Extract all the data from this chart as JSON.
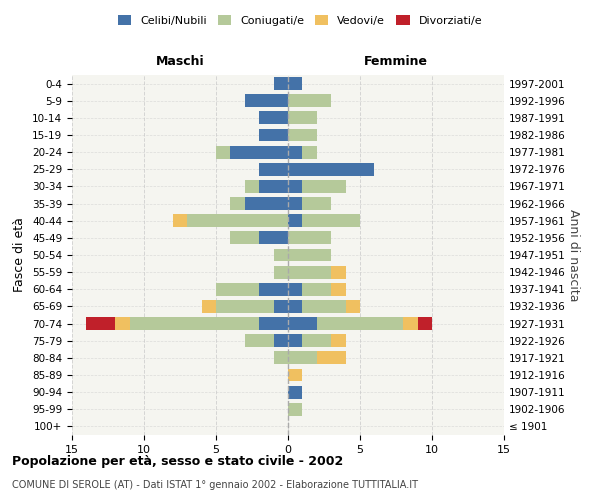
{
  "age_groups": [
    "100+",
    "95-99",
    "90-94",
    "85-89",
    "80-84",
    "75-79",
    "70-74",
    "65-69",
    "60-64",
    "55-59",
    "50-54",
    "45-49",
    "40-44",
    "35-39",
    "30-34",
    "25-29",
    "20-24",
    "15-19",
    "10-14",
    "5-9",
    "0-4"
  ],
  "birth_years": [
    "≤ 1901",
    "1902-1906",
    "1907-1911",
    "1912-1916",
    "1917-1921",
    "1922-1926",
    "1927-1931",
    "1932-1936",
    "1937-1941",
    "1942-1946",
    "1947-1951",
    "1952-1956",
    "1957-1961",
    "1962-1966",
    "1967-1971",
    "1972-1976",
    "1977-1981",
    "1982-1986",
    "1987-1991",
    "1992-1996",
    "1997-2001"
  ],
  "male": {
    "celibi": [
      0,
      0,
      0,
      0,
      0,
      1,
      2,
      1,
      2,
      0,
      0,
      2,
      0,
      3,
      2,
      2,
      4,
      2,
      2,
      3,
      1
    ],
    "coniugati": [
      0,
      0,
      0,
      0,
      1,
      2,
      9,
      4,
      3,
      1,
      1,
      2,
      7,
      1,
      1,
      0,
      1,
      0,
      0,
      0,
      0
    ],
    "vedovi": [
      0,
      0,
      0,
      0,
      0,
      0,
      1,
      1,
      0,
      0,
      0,
      0,
      1,
      0,
      0,
      0,
      0,
      0,
      0,
      0,
      0
    ],
    "divorziati": [
      0,
      0,
      0,
      0,
      0,
      0,
      2,
      0,
      0,
      0,
      0,
      0,
      0,
      0,
      0,
      0,
      0,
      0,
      0,
      0,
      0
    ]
  },
  "female": {
    "nubili": [
      0,
      0,
      1,
      0,
      0,
      1,
      2,
      1,
      1,
      0,
      0,
      0,
      1,
      1,
      1,
      6,
      1,
      0,
      0,
      0,
      1
    ],
    "coniugate": [
      0,
      1,
      0,
      0,
      2,
      2,
      6,
      3,
      2,
      3,
      3,
      3,
      4,
      2,
      3,
      0,
      1,
      2,
      2,
      3,
      0
    ],
    "vedove": [
      0,
      0,
      0,
      1,
      2,
      1,
      1,
      1,
      1,
      1,
      0,
      0,
      0,
      0,
      0,
      0,
      0,
      0,
      0,
      0,
      0
    ],
    "divorziate": [
      0,
      0,
      0,
      0,
      0,
      0,
      1,
      0,
      0,
      0,
      0,
      0,
      0,
      0,
      0,
      0,
      0,
      0,
      0,
      0,
      0
    ]
  },
  "colors": {
    "celibi": "#4472a8",
    "coniugati": "#b5c99a",
    "vedovi": "#f0c060",
    "divorziati": "#c0202a"
  },
  "xlim": 15,
  "title": "Popolazione per età, sesso e stato civile - 2002",
  "subtitle": "COMUNE DI SEROLE (AT) - Dati ISTAT 1° gennaio 2002 - Elaborazione TUTTITALIA.IT",
  "ylabel_left": "Fasce di età",
  "ylabel_right": "Anni di nascita",
  "xlabel_left": "Maschi",
  "xlabel_right": "Femmine",
  "bg_color": "#f5f5f0",
  "grid_color": "#cccccc"
}
